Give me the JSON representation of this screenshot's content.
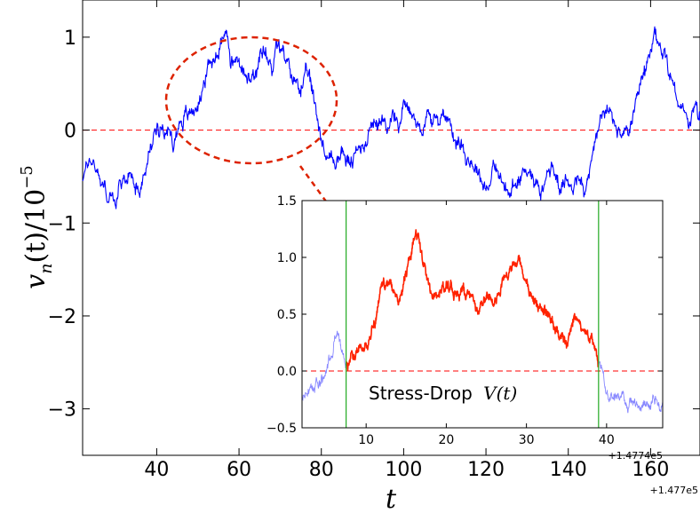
{
  "chart_data": [
    {
      "type": "line",
      "role": "main",
      "xlim": [
        22,
        172
      ],
      "ylim": [
        -3.5,
        1.4
      ],
      "x_ticks": [
        40,
        60,
        80,
        100,
        120,
        140,
        160
      ],
      "y_ticks": [
        -3,
        -2,
        -1,
        0,
        1
      ],
      "x_tick_labels": [
        "40",
        "60",
        "80",
        "100",
        "120",
        "140",
        "160"
      ],
      "y_tick_labels": [
        "−3",
        "−2",
        "−1",
        "0",
        "1"
      ],
      "x_offset_label": "+1.477e5",
      "xlabel": "t",
      "ylabel_parts": {
        "v": "v",
        "sub": "n",
        "mid": "(t)/10",
        "exp": "−5"
      },
      "reference_line_y": 0,
      "series_color": "#0000ff",
      "reference_color": "#ff0000",
      "annotation_color": "#dd2200",
      "series": [
        {
          "keypoints": [
            [
              22,
              -0.5
            ],
            [
              24,
              -0.3
            ],
            [
              26,
              -0.45
            ],
            [
              28,
              -0.7
            ],
            [
              30,
              -0.78
            ],
            [
              32,
              -0.55
            ],
            [
              34,
              -0.45
            ],
            [
              36,
              -0.6
            ],
            [
              38,
              -0.3
            ],
            [
              40,
              0.05
            ],
            [
              42,
              0.1
            ],
            [
              44,
              -0.15
            ],
            [
              46,
              0.15
            ],
            [
              48,
              0.15
            ],
            [
              50,
              0.3
            ],
            [
              52,
              0.6
            ],
            [
              54,
              0.8
            ],
            [
              56,
              1.0
            ],
            [
              57,
              1.2
            ],
            [
              58,
              0.7
            ],
            [
              60,
              0.75
            ],
            [
              62,
              0.5
            ],
            [
              64,
              0.55
            ],
            [
              66,
              0.8
            ],
            [
              68,
              0.65
            ],
            [
              69,
              1.0
            ],
            [
              71,
              0.75
            ],
            [
              73,
              0.55
            ],
            [
              75,
              0.5
            ],
            [
              77,
              0.55
            ],
            [
              79,
              0.15
            ],
            [
              81,
              -0.25
            ],
            [
              83,
              -0.35
            ],
            [
              85,
              -0.25
            ],
            [
              87,
              -0.35
            ],
            [
              89,
              -0.25
            ],
            [
              91,
              -0.05
            ],
            [
              93,
              0.15
            ],
            [
              95,
              0.0
            ],
            [
              97,
              0.2
            ],
            [
              99,
              0.05
            ],
            [
              100,
              0.4
            ],
            [
              102,
              0.15
            ],
            [
              104,
              0.05
            ],
            [
              106,
              0.15
            ],
            [
              108,
              0.05
            ],
            [
              110,
              0.2
            ],
            [
              112,
              0.0
            ],
            [
              114,
              -0.15
            ],
            [
              116,
              -0.3
            ],
            [
              118,
              -0.4
            ],
            [
              120,
              -0.6
            ],
            [
              122,
              -0.4
            ],
            [
              124,
              -0.6
            ],
            [
              126,
              -0.7
            ],
            [
              128,
              -0.55
            ],
            [
              130,
              -0.35
            ],
            [
              132,
              -0.55
            ],
            [
              134,
              -0.6
            ],
            [
              136,
              -0.4
            ],
            [
              138,
              -0.6
            ],
            [
              140,
              -0.55
            ],
            [
              142,
              -0.5
            ],
            [
              144,
              -0.7
            ],
            [
              146,
              -0.3
            ],
            [
              148,
              0.2
            ],
            [
              150,
              0.15
            ],
            [
              152,
              0.0
            ],
            [
              154,
              -0.05
            ],
            [
              156,
              0.15
            ],
            [
              158,
              0.5
            ],
            [
              160,
              0.8
            ],
            [
              161,
              0.95
            ],
            [
              163,
              0.85
            ],
            [
              165,
              0.6
            ],
            [
              167,
              0.3
            ],
            [
              169,
              0.1
            ],
            [
              171,
              0.2
            ],
            [
              172,
              0.1
            ]
          ]
        }
      ]
    },
    {
      "type": "line",
      "role": "inset",
      "xlim": [
        2,
        47
      ],
      "ylim": [
        -0.5,
        1.5
      ],
      "x_ticks": [
        10,
        20,
        30,
        40
      ],
      "y_ticks": [
        -0.5,
        0.0,
        0.5,
        1.0,
        1.5
      ],
      "x_tick_labels": [
        "10",
        "20",
        "30",
        "40"
      ],
      "y_tick_labels": [
        "−0.5",
        "0.0",
        "0.5",
        "1.0",
        "1.5"
      ],
      "x_offset_label": "+1.4774e5",
      "event_bounds": [
        7.5,
        39
      ],
      "event_color": "#ff2200",
      "context_color": "#8888ff",
      "bound_line_color": "#22aa22",
      "annotation": "Stress-Drop",
      "annotation_math": "V(t)",
      "series": [
        {
          "keypoints": [
            [
              2,
              -0.25
            ],
            [
              4,
              -0.1
            ],
            [
              5,
              0.0
            ],
            [
              6,
              0.25
            ],
            [
              6.5,
              0.35
            ],
            [
              7,
              0.15
            ],
            [
              7.5,
              0.05
            ],
            [
              8.5,
              0.15
            ],
            [
              9.5,
              0.2
            ],
            [
              10.5,
              0.25
            ],
            [
              11,
              0.4
            ],
            [
              12,
              0.75
            ],
            [
              13,
              0.8
            ],
            [
              14,
              0.6
            ],
            [
              15,
              0.85
            ],
            [
              16,
              1.15
            ],
            [
              16.5,
              1.2
            ],
            [
              17,
              1.0
            ],
            [
              18,
              0.7
            ],
            [
              19,
              0.65
            ],
            [
              20,
              0.75
            ],
            [
              21,
              0.7
            ],
            [
              22,
              0.7
            ],
            [
              23,
              0.65
            ],
            [
              24,
              0.55
            ],
            [
              25,
              0.65
            ],
            [
              26,
              0.6
            ],
            [
              27,
              0.8
            ],
            [
              28,
              0.9
            ],
            [
              29,
              1.0
            ],
            [
              30,
              0.8
            ],
            [
              31,
              0.6
            ],
            [
              32,
              0.55
            ],
            [
              33,
              0.45
            ],
            [
              34,
              0.35
            ],
            [
              35,
              0.3
            ],
            [
              36,
              0.5
            ],
            [
              37,
              0.35
            ],
            [
              38,
              0.3
            ],
            [
              39,
              0.05
            ],
            [
              40,
              -0.2
            ],
            [
              42,
              -0.25
            ],
            [
              44,
              -0.3
            ],
            [
              47,
              -0.3
            ]
          ]
        }
      ]
    }
  ]
}
